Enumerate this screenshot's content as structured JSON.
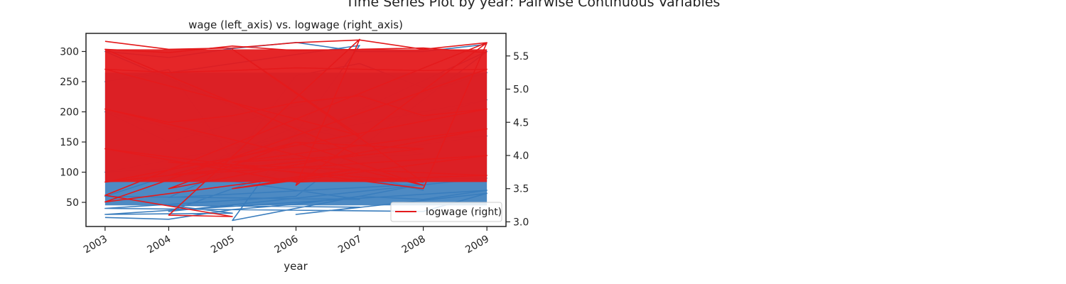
{
  "figure": {
    "suptitle": "Time Series Plot by year: Pairwise Continuous Variables"
  },
  "chart_data": {
    "type": "line",
    "title": "wage (left_axis) vs. logwage (right_axis)",
    "xlabel": "year",
    "ylabel": "",
    "y2label": "",
    "x_ticks": [
      "2003",
      "2004",
      "2005",
      "2006",
      "2007",
      "2008",
      "2009"
    ],
    "y_left_ticks": [
      50,
      100,
      150,
      200,
      250,
      300
    ],
    "y_right_ticks": [
      "3.0",
      "3.5",
      "4.0",
      "4.5",
      "5.0",
      "5.5"
    ],
    "xlim": [
      2002.7,
      2009.3
    ],
    "ylim_left": [
      10,
      330
    ],
    "ylim_right": [
      2.93,
      5.84
    ],
    "grid": false,
    "legend": {
      "placement": "lower-right",
      "entries": [
        "logwage (right)"
      ]
    },
    "colors": {
      "wage": "#3a7dbd",
      "logwage": "#e41a1c",
      "axis": "#222222"
    },
    "series": [
      {
        "name": "wage",
        "axis": "left",
        "x": [
          2003,
          2004,
          2005,
          2006,
          2007,
          2008,
          2009,
          2003,
          2005,
          2004,
          2007,
          2006,
          2009,
          2008,
          2003,
          2006,
          2009,
          2004,
          2008,
          2005,
          2007,
          2003,
          2004,
          2005,
          2006,
          2007,
          2008,
          2009,
          2003,
          2007,
          2005,
          2009,
          2004,
          2006,
          2008,
          2003,
          2004,
          2005,
          2006,
          2007,
          2008,
          2009,
          2003,
          2008,
          2006,
          2004,
          2009,
          2005,
          2007,
          2003,
          2004,
          2005,
          2006,
          2007,
          2008,
          2009
        ],
        "y": [
          25,
          22,
          38,
          47,
          60,
          55,
          70,
          30,
          32,
          45,
          42,
          30,
          65,
          35,
          40,
          60,
          300,
          58,
          80,
          20,
          310,
          250,
          270,
          120,
          260,
          280,
          240,
          265,
          60,
          55,
          85,
          90,
          35,
          110,
          70,
          200,
          150,
          180,
          210,
          230,
          190,
          220,
          100,
          130,
          175,
          90,
          160,
          140,
          120,
          300,
          290,
          305,
          315,
          300,
          300,
          312
        ]
      },
      {
        "name": "logwage (right)",
        "axis": "right",
        "x": [
          2003,
          2004,
          2005,
          2006,
          2007,
          2008,
          2009,
          2003,
          2005,
          2004,
          2007,
          2006,
          2009,
          2008,
          2003,
          2006,
          2009,
          2004,
          2008,
          2005,
          2007,
          2003,
          2004,
          2005,
          2006,
          2007,
          2008,
          2009,
          2003,
          2007,
          2005,
          2009,
          2004,
          2006,
          2008,
          2003,
          2004,
          2005,
          2006,
          2007,
          2008,
          2009,
          2003,
          2008,
          2006,
          2004,
          2009,
          2005,
          2007,
          2003,
          2004,
          2005,
          2006,
          2007,
          2008,
          2009
        ],
        "y": [
          5.72,
          5.6,
          5.62,
          5.7,
          5.74,
          5.6,
          5.7,
          3.4,
          3.08,
          3.1,
          5.75,
          3.55,
          5.7,
          3.5,
          4.1,
          3.6,
          3.7,
          3.9,
          3.6,
          5.6,
          4.3,
          5.3,
          5.25,
          5.28,
          5.32,
          5.3,
          5.28,
          5.3,
          3.3,
          3.8,
          3.5,
          4.0,
          3.7,
          4.2,
          3.55,
          4.7,
          4.5,
          4.6,
          4.8,
          4.9,
          4.6,
          4.7,
          3.6,
          4.1,
          4.2,
          3.5,
          4.4,
          3.9,
          4.0,
          5.6,
          5.55,
          5.65,
          5.58,
          5.6,
          5.62,
          5.55
        ]
      }
    ]
  }
}
